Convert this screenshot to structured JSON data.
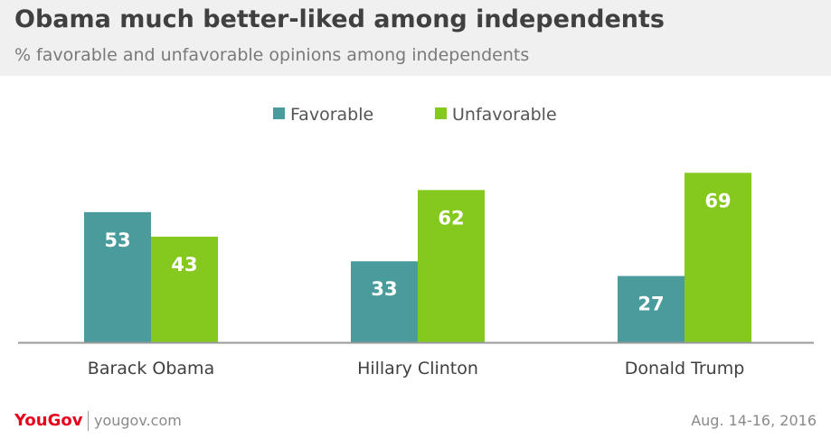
{
  "header": {
    "title": "Obama much better-liked  among independents",
    "subtitle": "% favorable and unfavorable opinions among independents"
  },
  "footer": {
    "brand": "YouGov",
    "site": "yougov.com",
    "date": "Aug. 14-16, 2016"
  },
  "colors": {
    "favorable": "#4a9c9c",
    "unfavorable": "#85c81e",
    "text": "#404040",
    "brand_red": "#e6001e"
  },
  "chart_data": {
    "type": "bar",
    "title": "Obama much better-liked  among independents",
    "subtitle": "% favorable and unfavorable opinions among independents",
    "categories": [
      "Barack Obama",
      "Hillary Clinton",
      "Donald Trump"
    ],
    "series": [
      {
        "name": "Favorable",
        "values": [
          53,
          33,
          27
        ],
        "color": "#4a9c9c"
      },
      {
        "name": "Unfavorable",
        "values": [
          43,
          62,
          69
        ],
        "color": "#85c81e"
      }
    ],
    "ylim": [
      0,
      75
    ],
    "grid": false,
    "legend": "top-center",
    "data_labels": true
  }
}
